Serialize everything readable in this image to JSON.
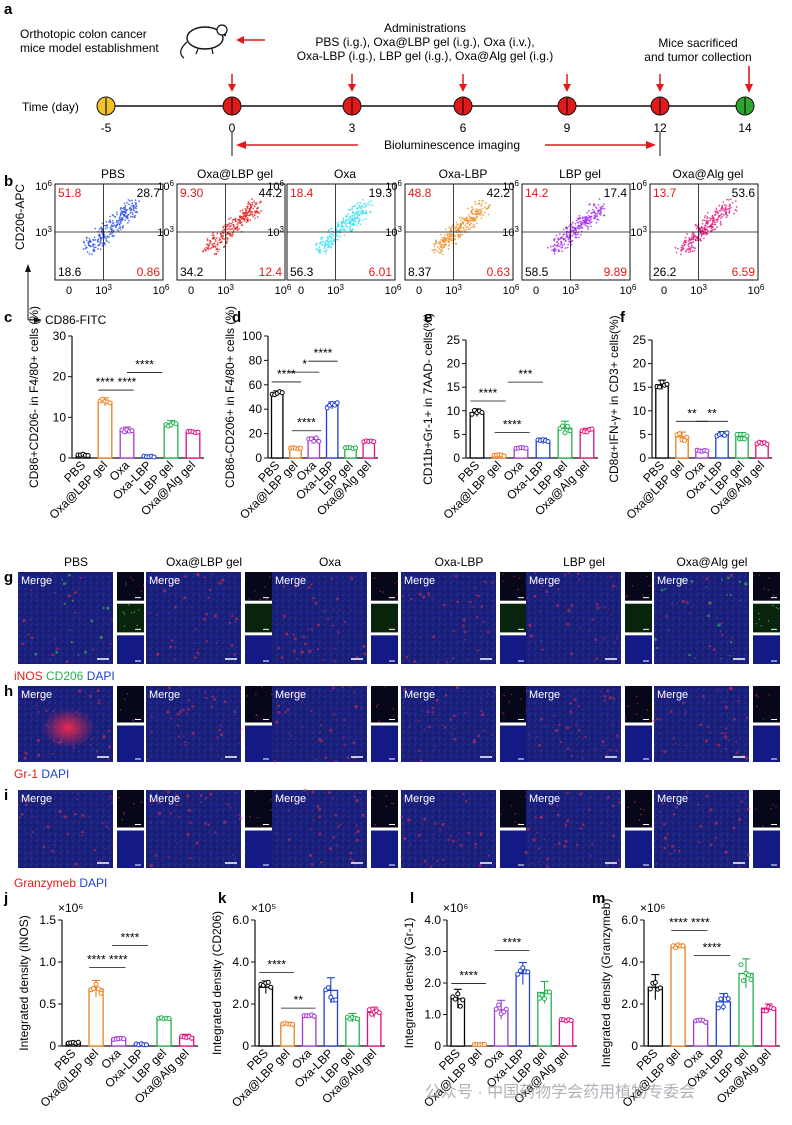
{
  "panel_letters": {
    "a": "a",
    "b": "b",
    "c": "c",
    "d": "d",
    "e": "e",
    "f": "f",
    "g": "g",
    "h": "h",
    "i": "i",
    "j": "j",
    "k": "k",
    "l": "l",
    "m": "m"
  },
  "timeline": {
    "model_text": [
      "Orthotopic colon cancer",
      "mice model establishment"
    ],
    "admin_title": "Administrations",
    "admin_lines": [
      "PBS (i.g.), Oxa@LBP gel (i.g.), Oxa (i.v.),",
      "Oxa-LBP (i.g.), LBP gel (i.g.), Oxa@Alg gel (i.g.)"
    ],
    "sacrifice_lines": [
      "Mice sacrificed",
      "and tumor collection"
    ],
    "axis_label": "Time (day)",
    "days": [
      "-5",
      "0",
      "3",
      "6",
      "9",
      "12",
      "14"
    ],
    "imaging_label": "Bioluminescence imaging",
    "colors": {
      "start": "#f2c22b",
      "admin": "#e21a1a",
      "end": "#2ea52e"
    }
  },
  "groups": [
    "PBS",
    "Oxa@LBP gel",
    "Oxa",
    "Oxa-LBP",
    "LBP gel",
    "Oxa@Alg gel"
  ],
  "group_colors": [
    "#000000",
    "#f07f1e",
    "#a23bd1",
    "#1f3fd6",
    "#22b24c",
    "#e0117c"
  ],
  "flow": {
    "y_axis": "CD206-APC",
    "x_axis": "CD86-FITC",
    "tick_exp": "6",
    "tick_mid": "3",
    "tick_base": "10",
    "tick_zero": "0",
    "dot_colors": [
      "#2b4fe6",
      "#e21a1a",
      "#2ee0f0",
      "#f08a1e",
      "#a020f0",
      "#e0117c"
    ],
    "quadrants": [
      {
        "ul": "51.8",
        "ur": "28.7",
        "ll": "18.6",
        "lr": "0.86"
      },
      {
        "ul": "9.30",
        "ur": "44.2",
        "ll": "34.2",
        "lr": "12.4"
      },
      {
        "ul": "18.4",
        "ur": "19.3",
        "ll": "56.3",
        "lr": "6.01"
      },
      {
        "ul": "48.8",
        "ur": "42.2",
        "ll": "8.37",
        "lr": "0.63"
      },
      {
        "ul": "14.2",
        "ur": "17.4",
        "ll": "58.5",
        "lr": "9.89"
      },
      {
        "ul": "13.7",
        "ur": "53.6",
        "ll": "26.2",
        "lr": "6.59"
      }
    ]
  },
  "micro": {
    "merge": "Merge",
    "g_legend": [
      {
        "text": "iNOS",
        "color": "#e21a1a"
      },
      {
        "text": " CD206",
        "color": "#22b24c"
      },
      {
        "text": " DAPI",
        "color": "#1f3fd6"
      }
    ],
    "h_legend": [
      {
        "text": "Gr-1",
        "color": "#e21a1a"
      },
      {
        "text": " DAPI",
        "color": "#1f3fd6"
      }
    ],
    "i_legend": [
      {
        "text": "Granzymeb",
        "color": "#e21a1a"
      },
      {
        "text": " DAPI",
        "color": "#1f3fd6"
      }
    ]
  },
  "watermark": "公众号 · 中国药物学会药用植物专委会",
  "chart_data": [
    {
      "panel": "c",
      "type": "bar",
      "ylabel": "CD86+CD206- in F4/80+ cells (%)",
      "ylim": [
        0,
        30
      ],
      "yticks": [
        "0",
        "10",
        "20",
        "30"
      ],
      "categories": [
        "PBS",
        "Oxa@LBP gel",
        "Oxa",
        "Oxa-LBP",
        "LBP gel",
        "Oxa@Alg gel"
      ],
      "values": [
        0.7,
        13.8,
        6.8,
        0.4,
        8.4,
        6.4
      ],
      "errors": [
        0.3,
        1.0,
        0.8,
        0.2,
        0.8,
        0.3
      ],
      "sig": [
        {
          "text": "**** ****",
          "x": 1.5,
          "y": 17.2
        },
        {
          "text": "****",
          "x": 2.8,
          "y": 21.5
        }
      ]
    },
    {
      "panel": "d",
      "type": "bar",
      "ylabel": "CD86-CD206+ in F4/80+ cells (%)",
      "ylim": [
        0,
        100
      ],
      "yticks": [
        "0",
        "20",
        "40",
        "60",
        "80",
        "100"
      ],
      "categories": [
        "PBS",
        "Oxa@LBP gel",
        "Oxa",
        "Oxa-LBP",
        "LBP gel",
        "Oxa@Alg gel"
      ],
      "values": [
        53,
        8,
        15,
        43,
        8,
        14
      ],
      "errors": [
        2,
        1,
        2,
        3,
        1,
        1
      ],
      "sig": [
        {
          "text": "****",
          "x": 0.5,
          "y": 64
        },
        {
          "text": "*",
          "x": 1.5,
          "y": 72
        },
        {
          "text": "****",
          "x": 2.5,
          "y": 81
        },
        {
          "text": "****",
          "x": 1.6,
          "y": 24
        }
      ]
    },
    {
      "panel": "e",
      "type": "bar",
      "ylabel": "CD11b+Gr-1+ in 7AAD- cells(%)",
      "ylim": [
        0,
        25
      ],
      "yticks": [
        "0",
        "5",
        "10",
        "15",
        "20",
        "25"
      ],
      "categories": [
        "PBS",
        "Oxa@LBP gel",
        "Oxa",
        "Oxa-LBP",
        "LBP gel",
        "Oxa@Alg gel"
      ],
      "values": [
        9.6,
        0.6,
        2.0,
        3.6,
        6.3,
        5.8
      ],
      "errors": [
        0.8,
        0.3,
        0.3,
        0.6,
        1.5,
        0.5
      ],
      "sig": [
        {
          "text": "****",
          "x": 0.5,
          "y": 12.5
        },
        {
          "text": "***",
          "x": 2.2,
          "y": 16.5
        },
        {
          "text": "****",
          "x": 1.6,
          "y": 5.8
        }
      ]
    },
    {
      "panel": "f",
      "type": "bar",
      "ylabel": "CD8α+IFN-γ+ in CD3+ cells(%)",
      "ylim": [
        0,
        25
      ],
      "yticks": [
        "0",
        "5",
        "10",
        "15",
        "20",
        "25"
      ],
      "categories": [
        "PBS",
        "Oxa@LBP gel",
        "Oxa",
        "Oxa-LBP",
        "LBP gel",
        "Oxa@Alg gel"
      ],
      "values": [
        15.5,
        4.5,
        1.5,
        5.0,
        4.6,
        3.2
      ],
      "errors": [
        1.0,
        1.0,
        0.3,
        0.6,
        0.8,
        0.4
      ],
      "sig": [
        {
          "text": "**",
          "x": 1.5,
          "y": 8.2
        },
        {
          "text": "**",
          "x": 2.5,
          "y": 8.2
        }
      ]
    },
    {
      "panel": "j",
      "type": "bar",
      "ylabel": "Integrated density (iNOS)",
      "exp": "×10⁶",
      "ylim": [
        0,
        1.5
      ],
      "yticks": [
        "0",
        "0.5",
        "1.0",
        "1.5"
      ],
      "categories": [
        "PBS",
        "Oxa@LBP gel",
        "Oxa",
        "Oxa-LBP",
        "LBP gel",
        "Oxa@Alg gel"
      ],
      "values": [
        0.04,
        0.68,
        0.09,
        0.02,
        0.33,
        0.11
      ],
      "errors": [
        0.01,
        0.1,
        0.02,
        0.01,
        0.01,
        0.03
      ],
      "sig": [
        {
          "text": "**** ****",
          "x": 1.5,
          "y": 0.96
        },
        {
          "text": "****",
          "x": 2.5,
          "y": 1.22
        }
      ]
    },
    {
      "panel": "k",
      "type": "bar",
      "ylabel": "Integrated density (CD206)",
      "exp": "×10⁵",
      "ylim": [
        0,
        6
      ],
      "yticks": [
        "0",
        "2.0",
        "4.0",
        "6.0"
      ],
      "categories": [
        "PBS",
        "Oxa@LBP gel",
        "Oxa",
        "Oxa-LBP",
        "LBP gel",
        "Oxa@Alg gel"
      ],
      "values": [
        2.8,
        1.05,
        1.45,
        2.65,
        1.35,
        1.6
      ],
      "errors": [
        0.3,
        0.05,
        0.05,
        0.6,
        0.2,
        0.25
      ],
      "sig": [
        {
          "text": "****",
          "x": 0.5,
          "y": 3.6
        },
        {
          "text": "**",
          "x": 1.5,
          "y": 1.9
        }
      ]
    },
    {
      "panel": "l",
      "type": "bar",
      "ylabel": "Integrated density (Gr-1)",
      "exp": "×10⁶",
      "ylim": [
        0,
        4
      ],
      "yticks": [
        "0",
        "1.0",
        "2.0",
        "3.0",
        "4.0"
      ],
      "categories": [
        "PBS",
        "Oxa@LBP gel",
        "Oxa",
        "Oxa-LBP",
        "LBP gel",
        "Oxa@Alg gel"
      ],
      "values": [
        1.5,
        0.05,
        1.15,
        2.3,
        1.7,
        0.8
      ],
      "errors": [
        0.3,
        0.02,
        0.3,
        0.35,
        0.35,
        0.05
      ],
      "sig": [
        {
          "text": "****",
          "x": 0.5,
          "y": 2.05
        },
        {
          "text": "****",
          "x": 2.5,
          "y": 3.1
        }
      ]
    },
    {
      "panel": "m",
      "type": "bar",
      "ylabel": "Integrated density (Granzymeb)",
      "exp": "×10⁶",
      "ylim": [
        0,
        6
      ],
      "yticks": [
        "0",
        "2.0",
        "4.0",
        "6.0"
      ],
      "categories": [
        "PBS",
        "Oxa@LBP gel",
        "Oxa",
        "Oxa-LBP",
        "LBP gel",
        "Oxa@Alg gel"
      ],
      "values": [
        2.8,
        4.75,
        1.2,
        2.1,
        3.45,
        1.8
      ],
      "errors": [
        0.6,
        0.1,
        0.1,
        0.4,
        0.7,
        0.2
      ],
      "sig": [
        {
          "text": "**** ****",
          "x": 1.5,
          "y": 5.6
        },
        {
          "text": "****",
          "x": 2.5,
          "y": 4.4
        }
      ]
    }
  ]
}
